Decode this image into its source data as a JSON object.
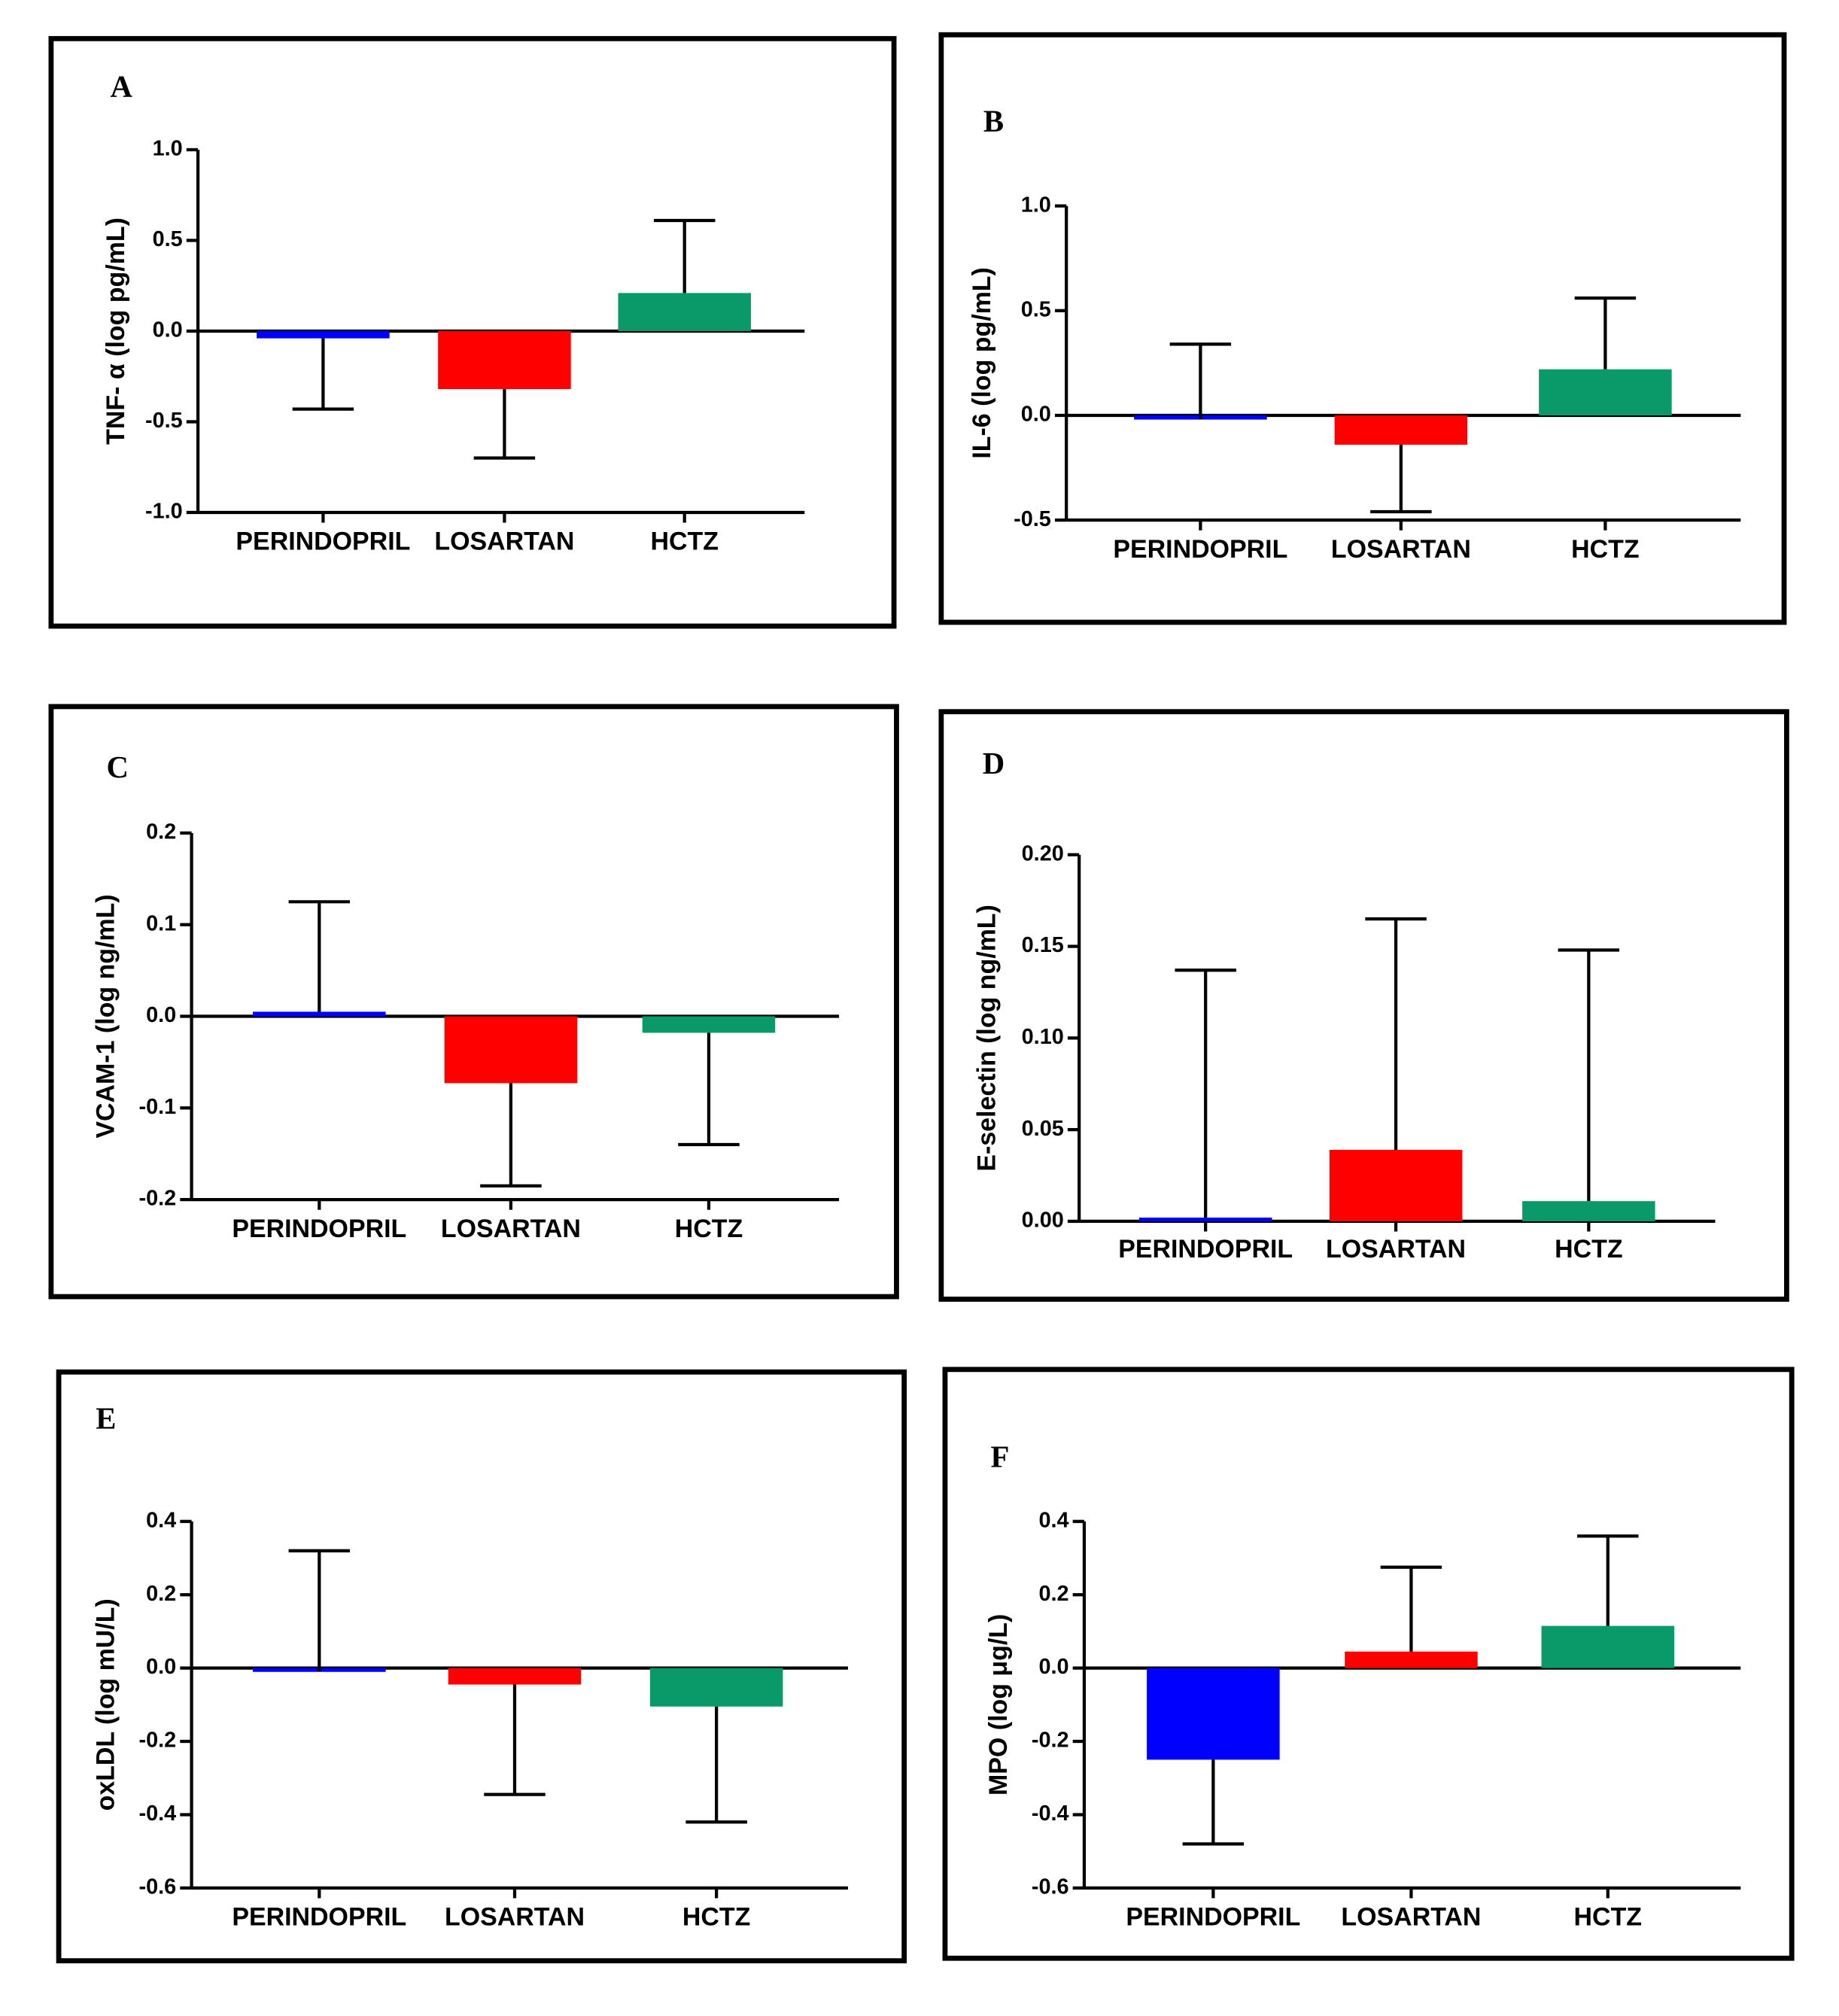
{
  "chart_data": [
    {
      "type": "bar",
      "label": "A",
      "ylabel": "TNF- α (log pg/mL)",
      "categories": [
        "PERINDOPRIL",
        "LOSARTAN",
        "HCTZ"
      ],
      "values": [
        -0.04,
        -0.32,
        0.21
      ],
      "errors": [
        0.39,
        0.38,
        0.4
      ],
      "error_direction": [
        "down",
        "down",
        "up"
      ],
      "colors": [
        "#0000ff",
        "#ff0000",
        "#0a9a6a"
      ],
      "ylim": [
        -1,
        1
      ],
      "yticks": [
        {
          "value": -1,
          "label": "-1.0"
        },
        -0.5,
        {
          "value": 0,
          "label": "0.0"
        },
        0.5,
        {
          "value": 1,
          "label": "1.0"
        }
      ]
    },
    {
      "type": "bar",
      "label": "B",
      "ylabel": "IL-6 (log pg/mL)",
      "categories": [
        "PERINDOPRIL",
        "LOSARTAN",
        "HCTZ"
      ],
      "values": [
        -0.02,
        -0.14,
        0.22
      ],
      "errors": [
        0.36,
        0.32,
        0.34
      ],
      "error_direction": [
        "up",
        "down",
        "up"
      ],
      "colors": [
        "#0000ff",
        "#ff0000",
        "#0a9a6a"
      ],
      "ylim": [
        -0.5,
        1
      ],
      "yticks": [
        -0.5,
        {
          "value": 0,
          "label": "0.0"
        },
        0.5,
        {
          "value": 1,
          "label": "1.0"
        }
      ]
    },
    {
      "type": "bar",
      "label": "C",
      "ylabel": "VCAM-1 (log ng/mL)",
      "categories": [
        "PERINDOPRIL",
        "LOSARTAN",
        "HCTZ"
      ],
      "values": [
        0.005,
        -0.073,
        -0.018
      ],
      "errors": [
        0.12,
        0.112,
        0.122
      ],
      "error_direction": [
        "up",
        "down",
        "down"
      ],
      "colors": [
        "#0000ff",
        "#ff0000",
        "#0a9a6a"
      ],
      "ylim": [
        -0.2,
        0.2
      ],
      "yticks": [
        -0.2,
        -0.1,
        {
          "value": 0,
          "label": "0.0"
        },
        0.1,
        0.2
      ]
    },
    {
      "type": "bar",
      "label": "D",
      "ylabel": "E-selectin (log ng/mL)",
      "categories": [
        "PERINDOPRIL",
        "LOSARTAN",
        "HCTZ"
      ],
      "values": [
        0.002,
        0.039,
        0.011
      ],
      "errors": [
        0.135,
        0.126,
        0.137
      ],
      "error_direction": [
        "up",
        "up",
        "up"
      ],
      "colors": [
        "#0000ff",
        "#ff0000",
        "#0a9a6a"
      ],
      "ylim": [
        0,
        0.2
      ],
      "yticks": [
        {
          "value": 0,
          "label": "0.00"
        },
        0.05,
        {
          "value": 0.1,
          "label": "0.10"
        },
        0.15,
        {
          "value": 0.2,
          "label": "0.20"
        }
      ]
    },
    {
      "type": "bar",
      "label": "E",
      "ylabel": "oxLDL (log mU/L)",
      "categories": [
        "PERINDOPRIL",
        "LOSARTAN",
        "HCTZ"
      ],
      "values": [
        -0.01,
        -0.045,
        -0.105
      ],
      "errors": [
        0.33,
        0.3,
        0.315
      ],
      "error_direction": [
        "up",
        "down",
        "down"
      ],
      "colors": [
        "#0000ff",
        "#ff0000",
        "#0a9a6a"
      ],
      "ylim": [
        -0.6,
        0.4
      ],
      "yticks": [
        -0.6,
        -0.4,
        -0.2,
        {
          "value": 0,
          "label": "0.0"
        },
        0.2,
        0.4
      ]
    },
    {
      "type": "bar",
      "label": "F",
      "ylabel": "MPO (log μg/L)",
      "categories": [
        "PERINDOPRIL",
        "LOSARTAN",
        "HCTZ"
      ],
      "values": [
        -0.25,
        0.045,
        0.115
      ],
      "errors": [
        0.23,
        0.23,
        0.245
      ],
      "error_direction": [
        "down",
        "up",
        "up"
      ],
      "colors": [
        "#0000ff",
        "#ff0000",
        "#0a9a6a"
      ],
      "ylim": [
        -0.6,
        0.4
      ],
      "yticks": [
        -0.6,
        -0.4,
        -0.2,
        {
          "value": 0,
          "label": "0.0"
        },
        0.2,
        0.4
      ]
    }
  ]
}
